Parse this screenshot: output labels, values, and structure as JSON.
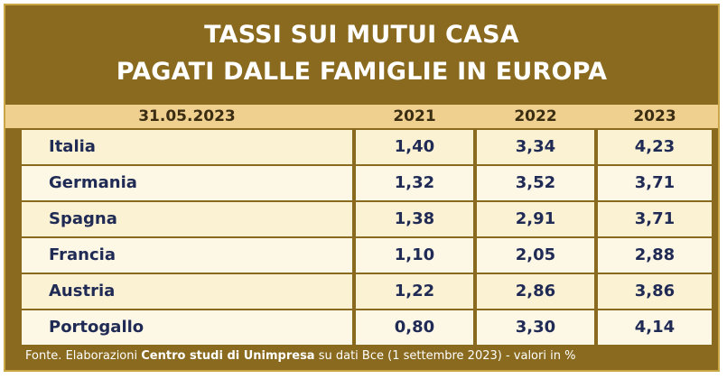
{
  "title": {
    "line1": "TASSI SUI MUTUI CASA",
    "line2": "PAGATI DALLE FAMIGLIE IN EUROPA"
  },
  "header": {
    "date": "31.05.2023",
    "years": [
      "2021",
      "2022",
      "2023"
    ]
  },
  "colors": {
    "frame": "#8a6a1e",
    "header_band": "#efd08e",
    "row_light": "#fbf1d3",
    "row_alt": "#fdf7e6",
    "text_dark": "#1f2a55"
  },
  "footer": {
    "prefix": "Fonte. Elaborazioni ",
    "org": "Centro studi di Unimpresa",
    "suffix": " su dati Bce (1 settembre 2023) - valori in %"
  },
  "chart_data": {
    "type": "table",
    "title": "TASSI SUI MUTUI CASA PAGATI DALLE FAMIGLIE IN EUROPA",
    "columns": [
      "31.05.2023",
      "2021",
      "2022",
      "2023"
    ],
    "rows": [
      {
        "country": "Italia",
        "values": [
          "1,40",
          "3,34",
          "4,23"
        ]
      },
      {
        "country": "Germania",
        "values": [
          "1,32",
          "3,52",
          "3,71"
        ]
      },
      {
        "country": "Spagna",
        "values": [
          "1,38",
          "2,91",
          "3,71"
        ]
      },
      {
        "country": "Francia",
        "values": [
          "1,10",
          "2,05",
          "2,88"
        ]
      },
      {
        "country": "Austria",
        "values": [
          "1,22",
          "2,86",
          "3,86"
        ]
      },
      {
        "country": "Portogallo",
        "values": [
          "0,80",
          "3,30",
          "4,14"
        ]
      }
    ]
  }
}
